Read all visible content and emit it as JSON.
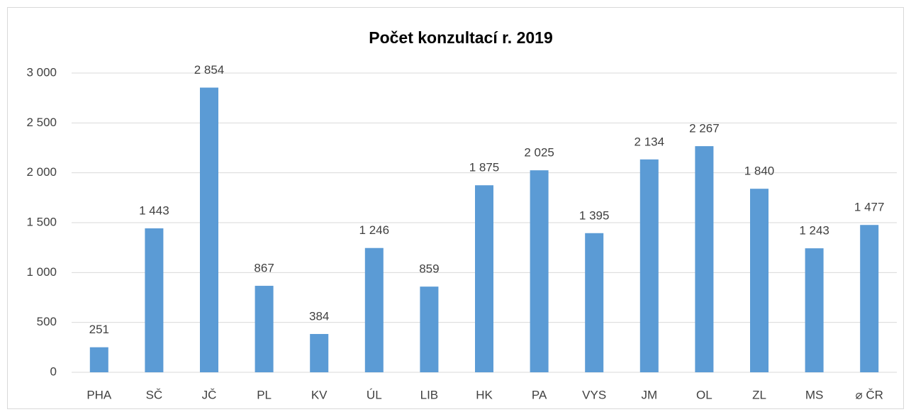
{
  "chart_data": {
    "type": "bar",
    "title": "Počet konzultací r. 2019",
    "categories": [
      "PHA",
      "SČ",
      "JČ",
      "PL",
      "KV",
      "ÚL",
      "LIB",
      "HK",
      "PA",
      "VYS",
      "JM",
      "OL",
      "ZL",
      "MS",
      "⌀ ČR"
    ],
    "values": [
      251,
      1443,
      2854,
      867,
      384,
      1246,
      859,
      1875,
      2025,
      1395,
      2134,
      2267,
      1840,
      1243,
      1477
    ],
    "value_labels": [
      "251",
      "1 443",
      "2 854",
      "867",
      "384",
      "1 246",
      "859",
      "1 875",
      "2 025",
      "1 395",
      "2 134",
      "2 267",
      "1 840",
      "1 243",
      "1 477"
    ],
    "color": "#5b9bd5",
    "ylim": [
      0,
      3000
    ],
    "yticks": [
      0,
      500,
      {
        "value": 1000,
        "label": "1 000"
      },
      {
        "value": 1500,
        "label": "1 500"
      },
      {
        "value": 2000,
        "label": "2 000"
      },
      {
        "value": 2500,
        "label": "2 500"
      },
      {
        "value": 3000,
        "label": "3 000"
      }
    ],
    "grid": true
  }
}
